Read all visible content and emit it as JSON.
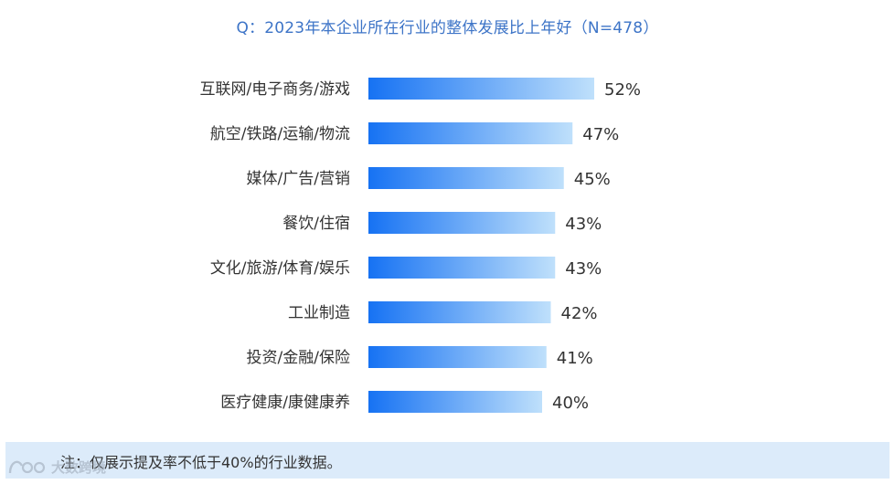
{
  "title": "Q：2023年本企业所在行业的整体发展比上年好（N=478）",
  "note": "注：仅展示提及率不低于40%的行业数据。",
  "watermark": "大数跨境",
  "colors": {
    "title": "#3D74C7",
    "bar_start": "#1672F3",
    "bar_end": "#BFE0FB",
    "note_background": "#DCEBFA",
    "text": "#333333"
  },
  "chart_data": {
    "type": "bar",
    "orientation": "horizontal",
    "title": "Q：2023年本企业所在行业的整体发展比上年好（N=478）",
    "categories": [
      "互联网/电子商务/游戏",
      "航空/铁路/运输/物流",
      "媒体/广告/营销",
      "餐饮/住宿",
      "文化/旅游/体育/娱乐",
      "工业制造",
      "投资/金融/保险",
      "医疗健康/康健康养"
    ],
    "values": [
      52,
      47,
      45,
      43,
      43,
      42,
      41,
      40
    ],
    "value_labels": [
      "52%",
      "47%",
      "45%",
      "43%",
      "43%",
      "42%",
      "41%",
      "40%"
    ],
    "unit": "%",
    "xlabel": "",
    "ylabel": "",
    "grid": false,
    "legend": "none"
  }
}
